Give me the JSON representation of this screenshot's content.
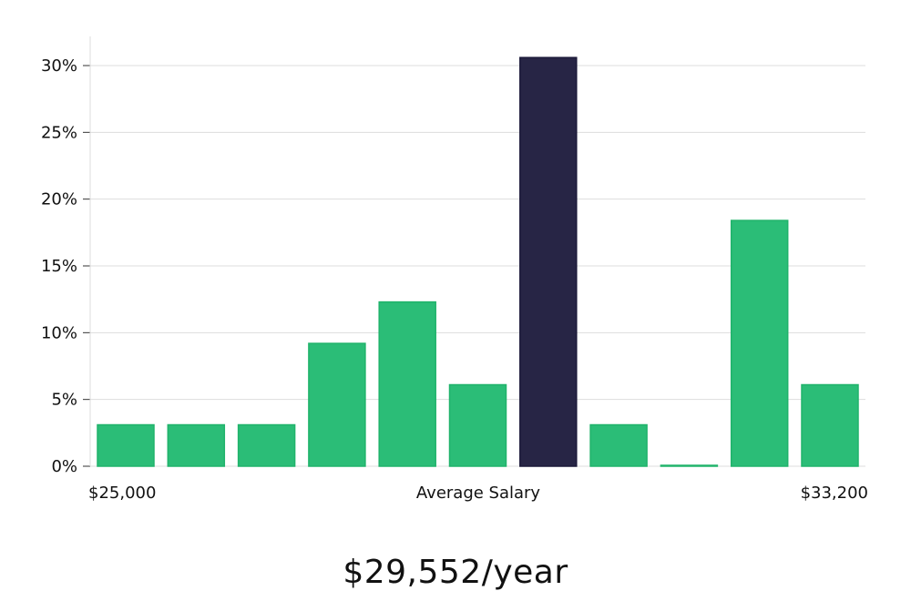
{
  "chart_data": {
    "type": "bar",
    "title": "",
    "xlabel": "Average Salary",
    "ylabel": "",
    "x_start_label": "$25,000",
    "x_end_label": "$33,200",
    "ylim": [
      0,
      32
    ],
    "yticks": [
      0,
      5,
      10,
      15,
      20,
      25,
      30
    ],
    "ytick_labels": [
      "0%",
      "5%",
      "10%",
      "15%",
      "20%",
      "25%",
      "30%"
    ],
    "grid": true,
    "values": [
      3.1,
      3.1,
      3.1,
      9.2,
      12.3,
      6.1,
      30.6,
      3.1,
      0,
      18.4,
      6.1
    ],
    "highlight_index": 6,
    "colors": {
      "bar": "#2bbd77",
      "highlight": "#272545",
      "grid": "#dddddd",
      "axis": "#dddddd"
    }
  },
  "summary": {
    "salary": "$29,552/year"
  }
}
